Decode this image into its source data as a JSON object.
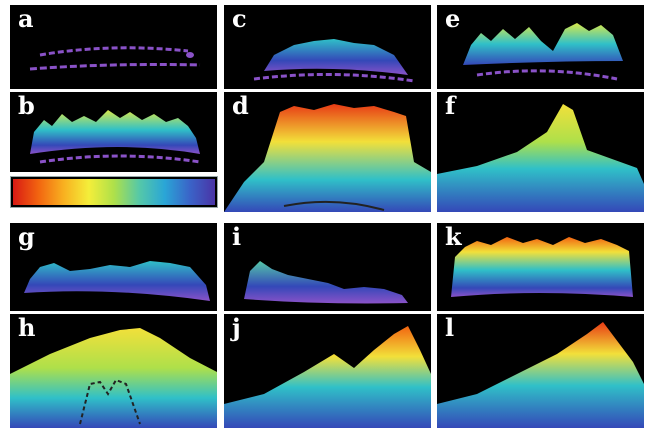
{
  "panels": [
    {
      "label": "a"
    },
    {
      "label": "b"
    },
    {
      "label": "c"
    },
    {
      "label": "d"
    },
    {
      "label": "e"
    },
    {
      "label": "f"
    },
    {
      "label": "g"
    },
    {
      "label": "h"
    },
    {
      "label": "i"
    },
    {
      "label": "j"
    },
    {
      "label": "k"
    },
    {
      "label": "l"
    }
  ],
  "colorbar": {
    "colors": [
      "#d81a14",
      "#f26410",
      "#f8b020",
      "#f4ee3a",
      "#aee04a",
      "#55c8a8",
      "#2aa6d6",
      "#3a64c8",
      "#4a34a6"
    ]
  },
  "palette": {
    "background": "#000000",
    "separator": "#ffffff",
    "low": "#3448b8",
    "mid": "#30c0c8",
    "high": "#f2e03a",
    "peak": "#e83a14",
    "outline": "#8a52c8"
  }
}
